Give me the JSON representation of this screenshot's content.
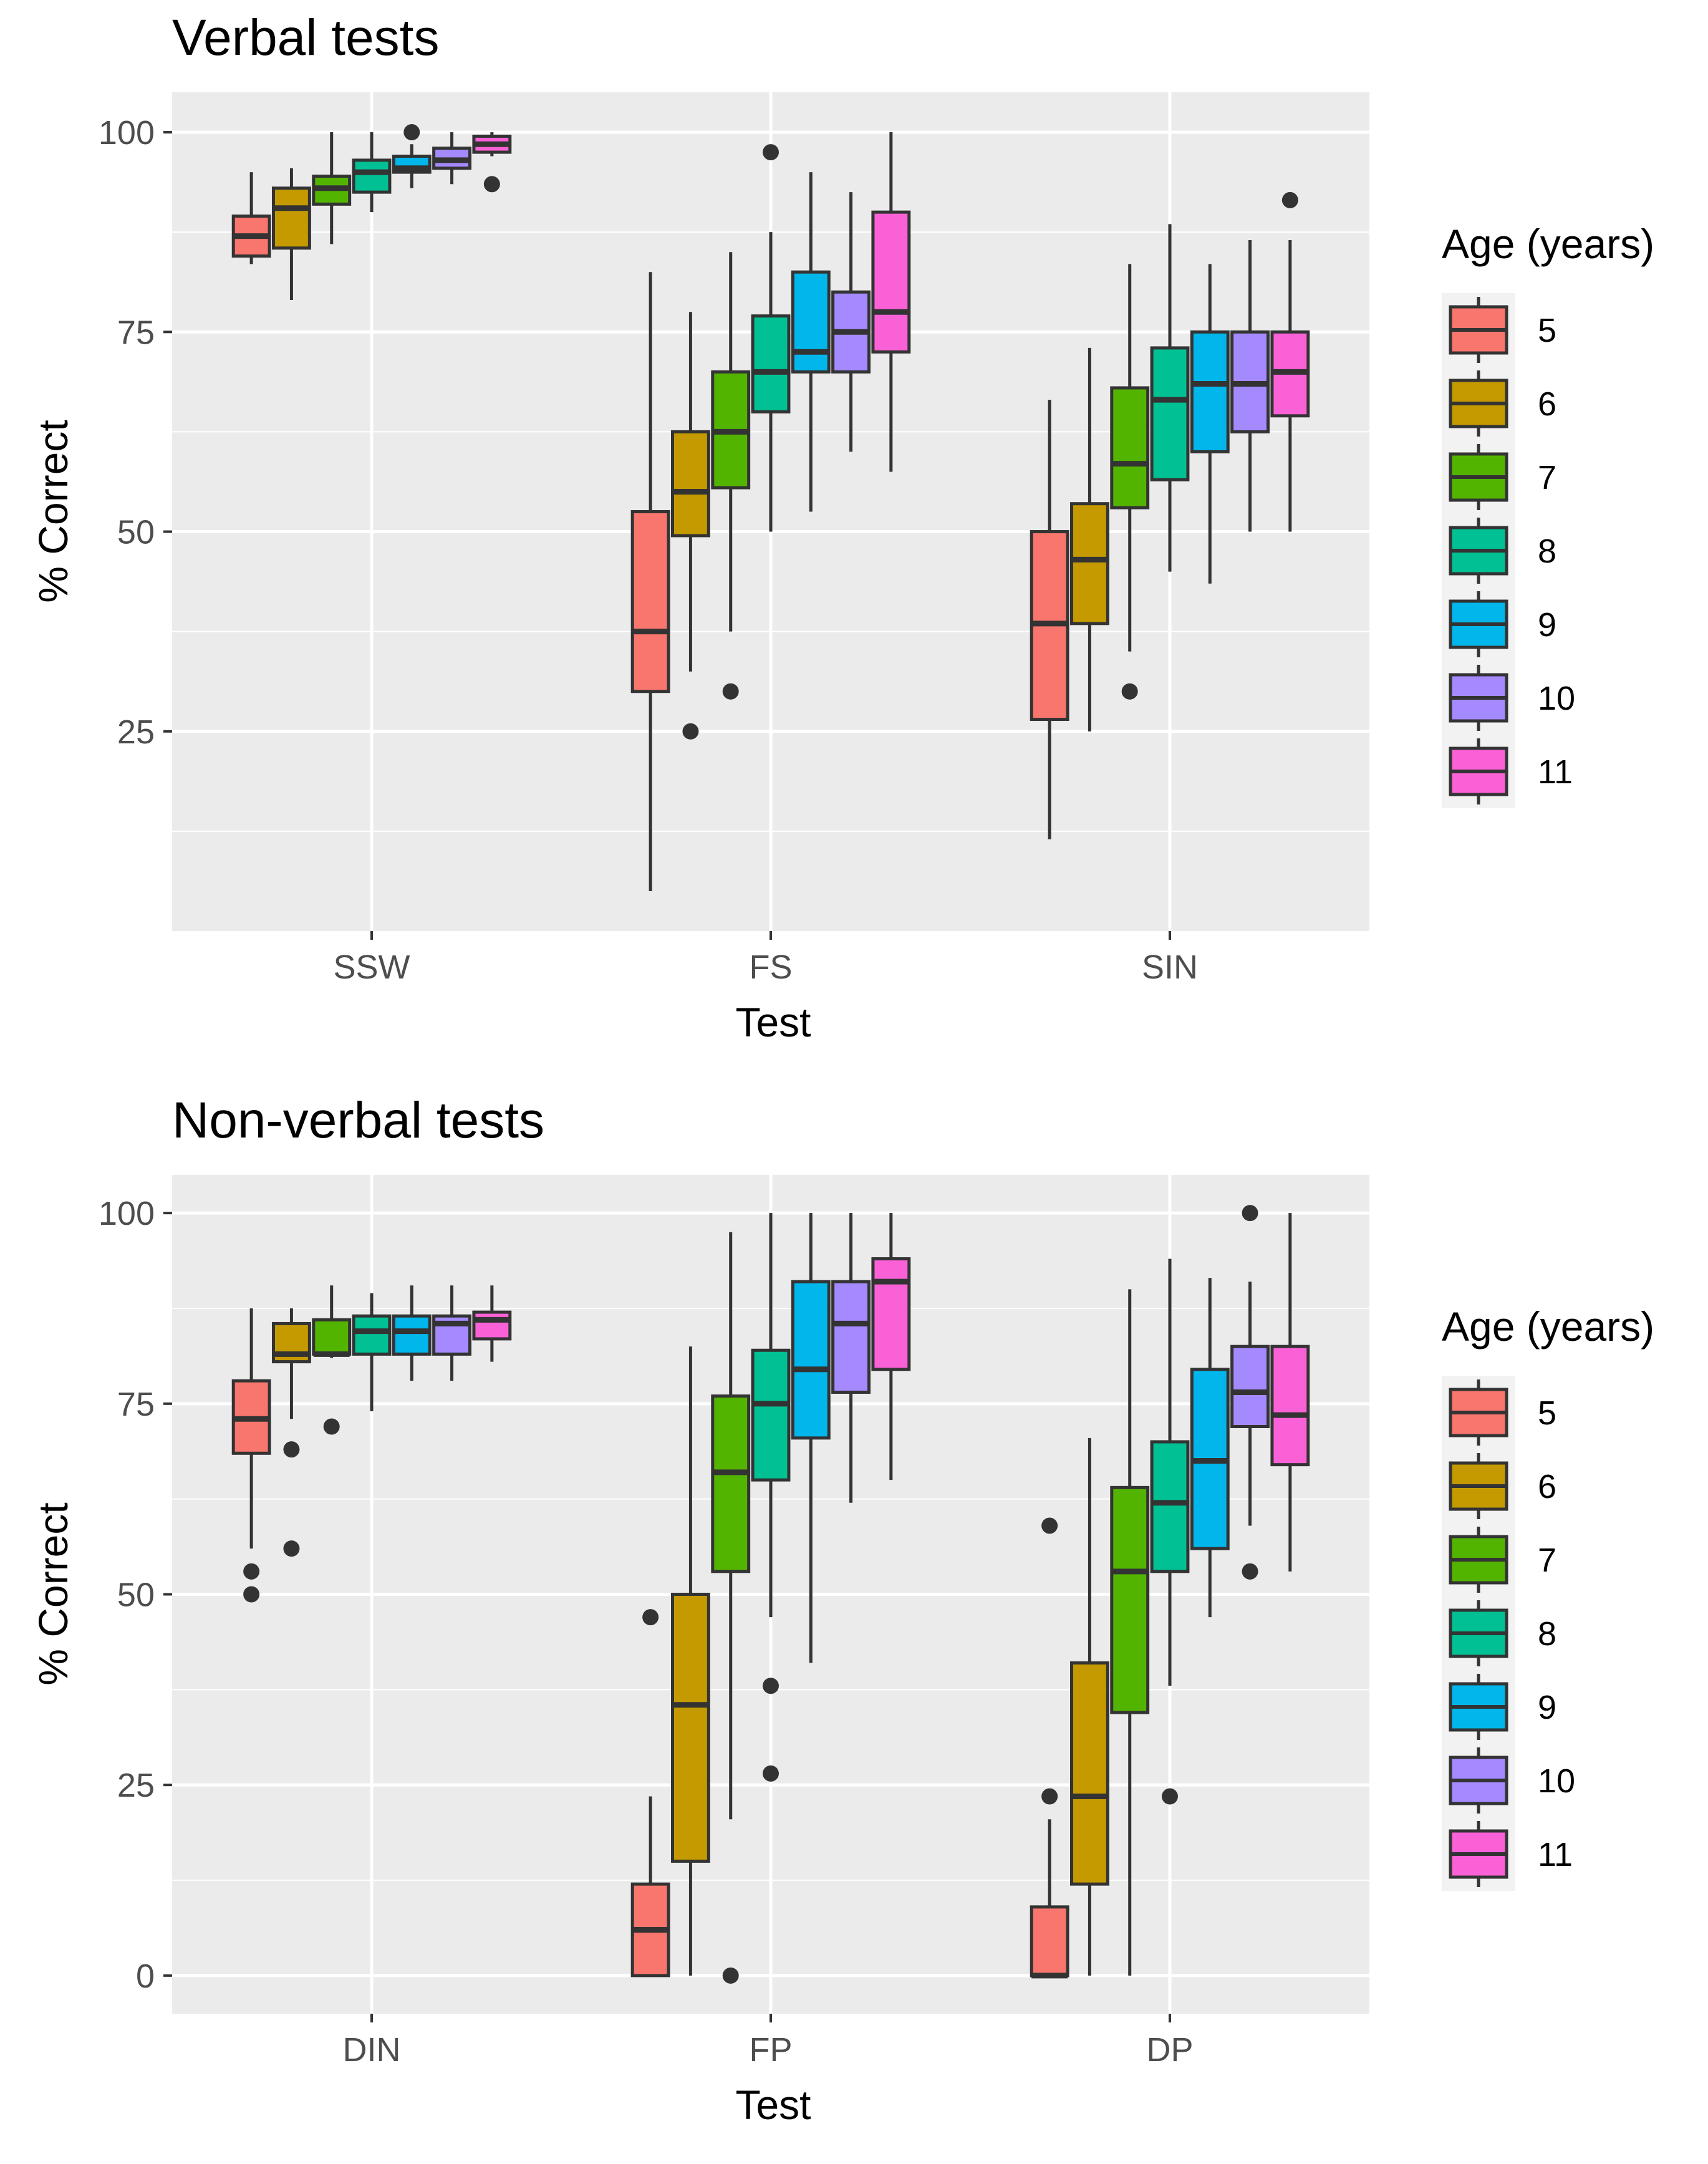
{
  "chart_data": [
    {
      "type": "boxplot",
      "title": "Verbal tests",
      "xlabel": "Test",
      "ylabel": "% Correct",
      "ylim": [
        0,
        105
      ],
      "yticks": [
        "25",
        "50",
        "75",
        "100"
      ],
      "categories": [
        "SSW",
        "FS",
        "SIN"
      ],
      "legend": {
        "title": "Age (years)",
        "position": "right"
      },
      "series": [
        {
          "name": "5",
          "color": "#F8766D",
          "boxes": [
            {
              "min": 83.5,
              "q1": 84.5,
              "median": 87,
              "q3": 89.5,
              "max": 95,
              "outliers": []
            },
            {
              "min": 5,
              "q1": 30,
              "median": 37.5,
              "q3": 52.5,
              "max": 82.5,
              "outliers": []
            },
            {
              "min": 11.5,
              "q1": 26.5,
              "median": 38.5,
              "q3": 50,
              "max": 66.5,
              "outliers": []
            }
          ]
        },
        {
          "name": "6",
          "color": "#C49A00",
          "boxes": [
            {
              "min": 79,
              "q1": 85.5,
              "median": 90.5,
              "q3": 93,
              "max": 95.5,
              "outliers": []
            },
            {
              "min": 32.5,
              "q1": 49.5,
              "median": 55,
              "q3": 62.5,
              "max": 77.5,
              "outliers": [
                25
              ]
            },
            {
              "min": 25,
              "q1": 38.5,
              "median": 46.5,
              "q3": 53.5,
              "max": 73,
              "outliers": []
            }
          ]
        },
        {
          "name": "7",
          "color": "#53B400",
          "boxes": [
            {
              "min": 86,
              "q1": 91,
              "median": 93,
              "q3": 94.5,
              "max": 100,
              "outliers": []
            },
            {
              "min": 37.5,
              "q1": 55.5,
              "median": 62.5,
              "q3": 70,
              "max": 85,
              "outliers": [
                30
              ]
            },
            {
              "min": 35,
              "q1": 53,
              "median": 58.5,
              "q3": 68,
              "max": 83.5,
              "outliers": [
                30
              ]
            }
          ]
        },
        {
          "name": "8",
          "color": "#00C094",
          "boxes": [
            {
              "min": 90,
              "q1": 92.5,
              "median": 95,
              "q3": 96.5,
              "max": 100,
              "outliers": []
            },
            {
              "min": 50,
              "q1": 65,
              "median": 70,
              "q3": 77,
              "max": 87.5,
              "outliers": [
                97.5
              ]
            },
            {
              "min": 45,
              "q1": 56.5,
              "median": 66.5,
              "q3": 73,
              "max": 88.5,
              "outliers": []
            }
          ]
        },
        {
          "name": "9",
          "color": "#00B6EB",
          "boxes": [
            {
              "min": 93,
              "q1": 95,
              "median": 95.5,
              "q3": 97,
              "max": 98.5,
              "outliers": [
                100
              ]
            },
            {
              "min": 52.5,
              "q1": 70,
              "median": 72.5,
              "q3": 82.5,
              "max": 95,
              "outliers": []
            },
            {
              "min": 43.5,
              "q1": 60,
              "median": 68.5,
              "q3": 75,
              "max": 83.5,
              "outliers": []
            }
          ]
        },
        {
          "name": "10",
          "color": "#A58AFF",
          "boxes": [
            {
              "min": 93.5,
              "q1": 95.5,
              "median": 96.5,
              "q3": 98,
              "max": 100,
              "outliers": []
            },
            {
              "min": 60,
              "q1": 70,
              "median": 75,
              "q3": 80,
              "max": 92.5,
              "outliers": []
            },
            {
              "min": 50,
              "q1": 62.5,
              "median": 68.5,
              "q3": 75,
              "max": 86.5,
              "outliers": []
            }
          ]
        },
        {
          "name": "11",
          "color": "#FB61D7",
          "boxes": [
            {
              "min": 97,
              "q1": 97.5,
              "median": 98.5,
              "q3": 99.5,
              "max": 100,
              "outliers": [
                93.5
              ]
            },
            {
              "min": 57.5,
              "q1": 72.5,
              "median": 77.5,
              "q3": 90,
              "max": 100,
              "outliers": []
            },
            {
              "min": 50,
              "q1": 64.5,
              "median": 70,
              "q3": 75,
              "max": 86.5,
              "outliers": [
                91.5
              ]
            }
          ]
        }
      ]
    },
    {
      "type": "boxplot",
      "title": "Non-verbal tests",
      "xlabel": "Test",
      "ylabel": "% Correct",
      "ylim": [
        -5,
        105
      ],
      "yticks": [
        "0",
        "25",
        "50",
        "75",
        "100"
      ],
      "categories": [
        "DIN",
        "FP",
        "DP"
      ],
      "legend": {
        "title": "Age (years)",
        "position": "right"
      },
      "series": [
        {
          "name": "5",
          "color": "#F8766D",
          "boxes": [
            {
              "min": 56,
              "q1": 68.5,
              "median": 73,
              "q3": 78,
              "max": 87.5,
              "outliers": [
                53,
                50
              ]
            },
            {
              "min": 0,
              "q1": 0,
              "median": 6,
              "q3": 12,
              "max": 23.5,
              "outliers": [
                47
              ]
            },
            {
              "min": 0,
              "q1": 0,
              "median": 0,
              "q3": 9,
              "max": 20.5,
              "outliers": [
                23.5,
                59
              ]
            }
          ]
        },
        {
          "name": "6",
          "color": "#C49A00",
          "boxes": [
            {
              "min": 73,
              "q1": 80.5,
              "median": 81.5,
              "q3": 85.5,
              "max": 87.5,
              "outliers": [
                69,
                56
              ]
            },
            {
              "min": 0,
              "q1": 15,
              "median": 35.5,
              "q3": 50,
              "max": 82.5,
              "outliers": []
            },
            {
              "min": 0,
              "q1": 12,
              "median": 23.5,
              "q3": 41,
              "max": 70.5,
              "outliers": []
            }
          ]
        },
        {
          "name": "7",
          "color": "#53B400",
          "boxes": [
            {
              "min": 81,
              "q1": 81.5,
              "median": 81.5,
              "q3": 86,
              "max": 90.5,
              "outliers": [
                72
              ]
            },
            {
              "min": 20.5,
              "q1": 53,
              "median": 66,
              "q3": 76,
              "max": 97.5,
              "outliers": [
                0
              ]
            },
            {
              "min": 0,
              "q1": 34.5,
              "median": 53,
              "q3": 64,
              "max": 90,
              "outliers": []
            }
          ]
        },
        {
          "name": "8",
          "color": "#00C094",
          "boxes": [
            {
              "min": 74,
              "q1": 81.5,
              "median": 84.5,
              "q3": 86.5,
              "max": 89.5,
              "outliers": []
            },
            {
              "min": 47,
              "q1": 65,
              "median": 75,
              "q3": 82,
              "max": 100,
              "outliers": [
                38,
                26.5
              ]
            },
            {
              "min": 38,
              "q1": 53,
              "median": 62,
              "q3": 70,
              "max": 94,
              "outliers": [
                23.5
              ]
            }
          ]
        },
        {
          "name": "9",
          "color": "#00B6EB",
          "boxes": [
            {
              "min": 78,
              "q1": 81.5,
              "median": 84.5,
              "q3": 86.5,
              "max": 90.5,
              "outliers": []
            },
            {
              "min": 41,
              "q1": 70.5,
              "median": 79.5,
              "q3": 91,
              "max": 100,
              "outliers": []
            },
            {
              "min": 47,
              "q1": 56,
              "median": 67.5,
              "q3": 79.5,
              "max": 91.5,
              "outliers": []
            }
          ]
        },
        {
          "name": "10",
          "color": "#A58AFF",
          "boxes": [
            {
              "min": 78,
              "q1": 81.5,
              "median": 85.5,
              "q3": 86.5,
              "max": 90.5,
              "outliers": []
            },
            {
              "min": 62,
              "q1": 76.5,
              "median": 85.5,
              "q3": 91,
              "max": 100,
              "outliers": []
            },
            {
              "min": 59,
              "q1": 72,
              "median": 76.5,
              "q3": 82.5,
              "max": 91,
              "outliers": [
                100,
                53
              ]
            }
          ]
        },
        {
          "name": "11",
          "color": "#FB61D7",
          "boxes": [
            {
              "min": 80.5,
              "q1": 83.5,
              "median": 86,
              "q3": 87,
              "max": 90.5,
              "outliers": []
            },
            {
              "min": 65,
              "q1": 79.5,
              "median": 91,
              "q3": 94,
              "max": 100,
              "outliers": []
            },
            {
              "min": 53,
              "q1": 67,
              "median": 73.5,
              "q3": 82.5,
              "max": 100,
              "outliers": []
            }
          ]
        }
      ]
    }
  ]
}
